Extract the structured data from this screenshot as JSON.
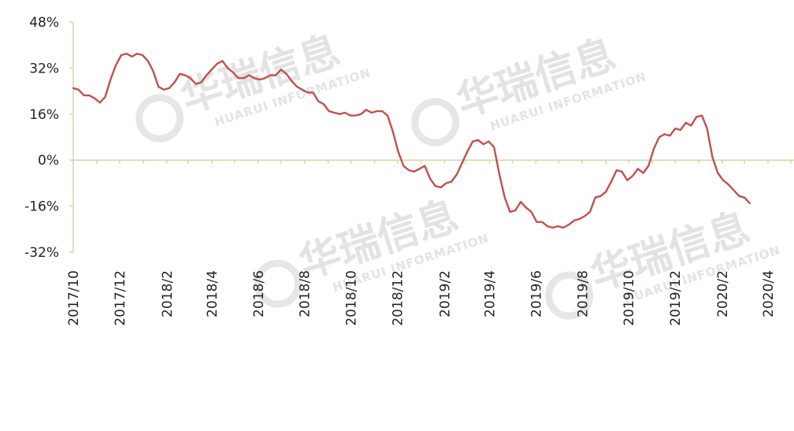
{
  "chart_data": {
    "type": "line",
    "title": "",
    "xlabel": "",
    "ylabel": "",
    "ylim": [
      -32,
      48
    ],
    "y_ticks": [
      "48%",
      "32%",
      "16%",
      "0%",
      "-16%",
      "-32%"
    ],
    "y_tick_values": [
      48,
      32,
      16,
      0,
      -16,
      -32
    ],
    "x_tick_labels": [
      "2017/10",
      "2017/12",
      "2018/2",
      "2018/4",
      "2018/6",
      "2018/8",
      "2018/10",
      "2018/12",
      "2019/2",
      "2019/4",
      "2019/6",
      "2019/8",
      "2019/10",
      "2019/12",
      "2020/2",
      "2020/4"
    ],
    "x_range": [
      "2017-10-01",
      "2020-05-01"
    ],
    "grid": false,
    "series": [
      {
        "color": "#c0504d",
        "unit": "%",
        "points": [
          [
            "2017-10-01",
            25.0
          ],
          [
            "2017-10-08",
            24.5
          ],
          [
            "2017-10-15",
            22.5
          ],
          [
            "2017-10-22",
            22.5
          ],
          [
            "2017-10-29",
            21.5
          ],
          [
            "2017-11-05",
            20.0
          ],
          [
            "2017-11-12",
            22.0
          ],
          [
            "2017-11-19",
            28.0
          ],
          [
            "2017-11-26",
            33.0
          ],
          [
            "2017-12-03",
            36.5
          ],
          [
            "2017-12-10",
            37.0
          ],
          [
            "2017-12-17",
            36.0
          ],
          [
            "2017-12-24",
            37.0
          ],
          [
            "2017-12-31",
            36.5
          ],
          [
            "2018-01-07",
            34.5
          ],
          [
            "2018-01-14",
            31.0
          ],
          [
            "2018-01-21",
            25.5
          ],
          [
            "2018-01-28",
            24.5
          ],
          [
            "2018-02-04",
            25.0
          ],
          [
            "2018-02-11",
            27.0
          ],
          [
            "2018-02-18",
            30.0
          ],
          [
            "2018-02-25",
            29.5
          ],
          [
            "2018-03-04",
            28.5
          ],
          [
            "2018-03-11",
            26.5
          ],
          [
            "2018-03-18",
            27.0
          ],
          [
            "2018-03-25",
            29.5
          ],
          [
            "2018-04-01",
            31.5
          ],
          [
            "2018-04-08",
            33.5
          ],
          [
            "2018-04-15",
            34.5
          ],
          [
            "2018-04-22",
            32.0
          ],
          [
            "2018-04-29",
            30.5
          ],
          [
            "2018-05-06",
            28.5
          ],
          [
            "2018-05-13",
            28.5
          ],
          [
            "2018-05-20",
            29.5
          ],
          [
            "2018-05-27",
            28.5
          ],
          [
            "2018-06-03",
            28.0
          ],
          [
            "2018-06-10",
            28.5
          ],
          [
            "2018-06-17",
            29.5
          ],
          [
            "2018-06-24",
            29.5
          ],
          [
            "2018-07-01",
            31.5
          ],
          [
            "2018-07-08",
            30.0
          ],
          [
            "2018-07-15",
            27.5
          ],
          [
            "2018-07-22",
            25.5
          ],
          [
            "2018-07-29",
            24.5
          ],
          [
            "2018-08-05",
            23.5
          ],
          [
            "2018-08-12",
            23.5
          ],
          [
            "2018-08-19",
            20.5
          ],
          [
            "2018-08-26",
            19.5
          ],
          [
            "2018-09-02",
            17.0
          ],
          [
            "2018-09-09",
            16.5
          ],
          [
            "2018-09-16",
            16.0
          ],
          [
            "2018-09-23",
            16.5
          ],
          [
            "2018-09-30",
            15.5
          ],
          [
            "2018-10-07",
            15.5
          ],
          [
            "2018-10-14",
            16.0
          ],
          [
            "2018-10-21",
            17.5
          ],
          [
            "2018-10-28",
            16.5
          ],
          [
            "2018-11-04",
            17.0
          ],
          [
            "2018-11-11",
            17.0
          ],
          [
            "2018-11-18",
            15.5
          ],
          [
            "2018-11-25",
            10.0
          ],
          [
            "2018-12-02",
            3.0
          ],
          [
            "2018-12-09",
            -2.0
          ],
          [
            "2018-12-16",
            -3.5
          ],
          [
            "2018-12-23",
            -4.0
          ],
          [
            "2018-12-30",
            -3.0
          ],
          [
            "2019-01-06",
            -2.0
          ],
          [
            "2019-01-13",
            -6.5
          ],
          [
            "2019-01-20",
            -9.0
          ],
          [
            "2019-01-27",
            -9.5
          ],
          [
            "2019-02-03",
            -8.0
          ],
          [
            "2019-02-10",
            -7.5
          ],
          [
            "2019-02-17",
            -5.0
          ],
          [
            "2019-02-24",
            -1.0
          ],
          [
            "2019-03-03",
            3.0
          ],
          [
            "2019-03-10",
            6.5
          ],
          [
            "2019-03-17",
            7.0
          ],
          [
            "2019-03-24",
            5.5
          ],
          [
            "2019-03-31",
            6.5
          ],
          [
            "2019-04-07",
            4.5
          ],
          [
            "2019-04-14",
            -5.0
          ],
          [
            "2019-04-21",
            -13.0
          ],
          [
            "2019-04-28",
            -18.0
          ],
          [
            "2019-05-05",
            -17.5
          ],
          [
            "2019-05-12",
            -14.5
          ],
          [
            "2019-05-19",
            -16.5
          ],
          [
            "2019-05-26",
            -18.0
          ],
          [
            "2019-06-02",
            -21.5
          ],
          [
            "2019-06-09",
            -21.5
          ],
          [
            "2019-06-16",
            -23.0
          ],
          [
            "2019-06-23",
            -23.5
          ],
          [
            "2019-06-30",
            -23.0
          ],
          [
            "2019-07-07",
            -23.5
          ],
          [
            "2019-07-14",
            -22.5
          ],
          [
            "2019-07-21",
            -21.0
          ],
          [
            "2019-07-28",
            -20.5
          ],
          [
            "2019-08-04",
            -19.5
          ],
          [
            "2019-08-11",
            -18.0
          ],
          [
            "2019-08-18",
            -13.0
          ],
          [
            "2019-08-25",
            -12.5
          ],
          [
            "2019-09-01",
            -11.0
          ],
          [
            "2019-09-08",
            -7.5
          ],
          [
            "2019-09-15",
            -3.5
          ],
          [
            "2019-09-22",
            -4.0
          ],
          [
            "2019-09-29",
            -7.0
          ],
          [
            "2019-10-06",
            -5.5
          ],
          [
            "2019-10-13",
            -3.0
          ],
          [
            "2019-10-20",
            -4.5
          ],
          [
            "2019-10-27",
            -2.0
          ],
          [
            "2019-11-03",
            4.0
          ],
          [
            "2019-11-10",
            8.0
          ],
          [
            "2019-11-17",
            9.0
          ],
          [
            "2019-11-24",
            8.5
          ],
          [
            "2019-12-01",
            11.0
          ],
          [
            "2019-12-08",
            10.5
          ],
          [
            "2019-12-15",
            13.0
          ],
          [
            "2019-12-22",
            12.0
          ],
          [
            "2019-12-29",
            15.0
          ],
          [
            "2020-01-05",
            15.5
          ],
          [
            "2020-01-12",
            11.0
          ],
          [
            "2020-01-19",
            1.0
          ],
          [
            "2020-01-26",
            -4.5
          ],
          [
            "2020-02-02",
            -7.0
          ],
          [
            "2020-02-09",
            -8.5
          ],
          [
            "2020-02-16",
            -10.5
          ],
          [
            "2020-02-23",
            -12.5
          ],
          [
            "2020-03-01",
            -13.0
          ],
          [
            "2020-03-08",
            -15.0
          ]
        ]
      }
    ],
    "watermark": {
      "chinese": "华瑞信息",
      "english": "HUARUI INFORMATION"
    }
  }
}
